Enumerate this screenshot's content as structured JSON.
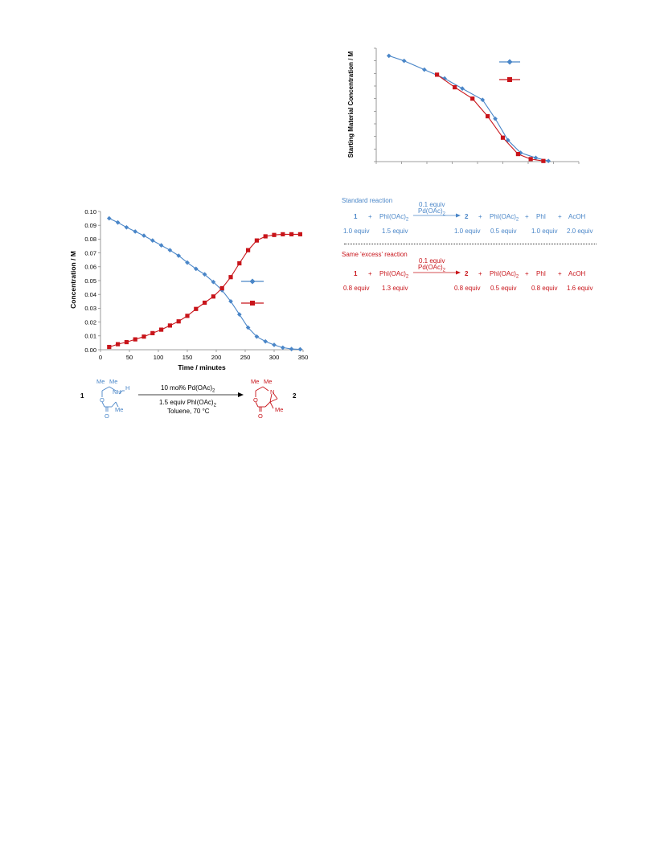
{
  "colors": {
    "blue": "#4a86c8",
    "red": "#c8141a",
    "text": "#000000",
    "axis": "#7f7f7f"
  },
  "chart_data": [
    {
      "type": "line",
      "title": "",
      "ylabel": "Starting Material Concentration / M",
      "xlabel": "",
      "grid": false,
      "legend_placement": "top-right",
      "xlim": [
        0,
        8
      ],
      "ylim": [
        0,
        9
      ],
      "series": [
        {
          "color": "#4a86c8",
          "marker": "diamond",
          "x": [
            0.5,
            1.1,
            1.9,
            2.7,
            3.4,
            4.2,
            4.7,
            5.2,
            5.7,
            6.3,
            6.8
          ],
          "y": [
            8.4,
            8.0,
            7.3,
            6.6,
            5.8,
            4.9,
            3.4,
            1.7,
            0.7,
            0.3,
            0.05
          ]
        },
        {
          "color": "#c8141a",
          "marker": "square",
          "x": [
            2.4,
            3.1,
            3.8,
            4.4,
            5.0,
            5.6,
            6.1,
            6.6
          ],
          "y": [
            6.9,
            5.9,
            5.0,
            3.6,
            1.9,
            0.6,
            0.2,
            0.05
          ]
        }
      ]
    },
    {
      "type": "line",
      "title": "",
      "xlabel": "Time / minutes",
      "ylabel": "Concentration / M",
      "grid": false,
      "legend_placement": "center-right",
      "xlim": [
        0,
        350
      ],
      "ylim": [
        0,
        0.1
      ],
      "xticks": [
        "0",
        "50",
        "100",
        "150",
        "200",
        "250",
        "300",
        "350"
      ],
      "yticks": [
        "0.00",
        "0.01",
        "0.02",
        "0.03",
        "0.04",
        "0.05",
        "0.06",
        "0.07",
        "0.08",
        "0.09",
        "0.10"
      ],
      "series": [
        {
          "color": "#4a86c8",
          "marker": "diamond",
          "x": [
            15,
            30,
            45,
            60,
            75,
            90,
            105,
            120,
            135,
            150,
            165,
            180,
            195,
            210,
            225,
            240,
            255,
            270,
            285,
            300,
            315,
            330,
            345
          ],
          "y": [
            0.095,
            0.092,
            0.0885,
            0.0855,
            0.0825,
            0.079,
            0.0755,
            0.072,
            0.068,
            0.063,
            0.0585,
            0.0545,
            0.049,
            0.043,
            0.035,
            0.0255,
            0.016,
            0.0095,
            0.006,
            0.0035,
            0.0015,
            0.0005,
            0.0003
          ]
        },
        {
          "color": "#c8141a",
          "marker": "square",
          "x": [
            15,
            30,
            45,
            60,
            75,
            90,
            105,
            120,
            135,
            150,
            165,
            180,
            195,
            210,
            225,
            240,
            255,
            270,
            285,
            300,
            315,
            330,
            345
          ],
          "y": [
            0.002,
            0.004,
            0.0055,
            0.0075,
            0.0095,
            0.012,
            0.0145,
            0.0175,
            0.0205,
            0.0245,
            0.0295,
            0.034,
            0.0385,
            0.0445,
            0.0525,
            0.0625,
            0.072,
            0.079,
            0.082,
            0.083,
            0.0835,
            0.0835,
            0.0835
          ]
        }
      ]
    }
  ],
  "scheme1": {
    "compound_1": "1",
    "compound_2": "2",
    "me_a": "Me",
    "me_b": "Me",
    "me_c": "Me",
    "nh": "NH",
    "h": "H",
    "o_ring": "O",
    "o_carbonyl": "O",
    "me_d": "Me",
    "me_e": "Me",
    "me_f": "Me",
    "n_ring": "N",
    "o_ring_b": "O",
    "o_carbonyl_b": "O",
    "catalyst_pre": "10 mol% Pd(OAc)",
    "catalyst_sub": "2",
    "oxidant_pre": "1.5 equiv PhI(OAc)",
    "oxidant_sub": "2",
    "conditions": "Toluene, 70 °C"
  },
  "standard": {
    "header": "Standard reaction",
    "cat_top": "0.1 equiv",
    "cat_pre": "Pd(OAc)",
    "cat_sub": "2",
    "r1": "1",
    "plus1": "+",
    "r2_pre": "PhI(OAc)",
    "r2_sub": "2",
    "p1": "2",
    "plus2": "+",
    "p2_pre": "PhI(OAc)",
    "p2_sub": "2",
    "plus3": "+",
    "p3": "PhI",
    "plus4": "+",
    "p4": "AcOH",
    "eq_r1": "1.0 equiv",
    "eq_r2": "1.5 equiv",
    "eq_p1": "1.0 equiv",
    "eq_p2": "0.5 equiv",
    "eq_p3": "1.0 equiv",
    "eq_p4": "2.0 equiv"
  },
  "excess": {
    "header": "Same 'excess' reaction",
    "cat_top": "0.1 equiv",
    "cat_pre": "Pd(OAc)",
    "cat_sub": "2",
    "r1": "1",
    "plus1": "+",
    "r2_pre": "PhI(OAc)",
    "r2_sub": "2",
    "p1": "2",
    "plus2": "+",
    "p2_pre": "PhI(OAc)",
    "p2_sub": "2",
    "plus3": "+",
    "p3": "PhI",
    "plus4": "+",
    "p4": "AcOH",
    "eq_r1": "0.8 equiv",
    "eq_r2": "1.3 equiv",
    "eq_p1": "0.8 equiv",
    "eq_p2": "0.5 equiv",
    "eq_p3": "0.8 equiv",
    "eq_p4": "1.6 equiv"
  }
}
